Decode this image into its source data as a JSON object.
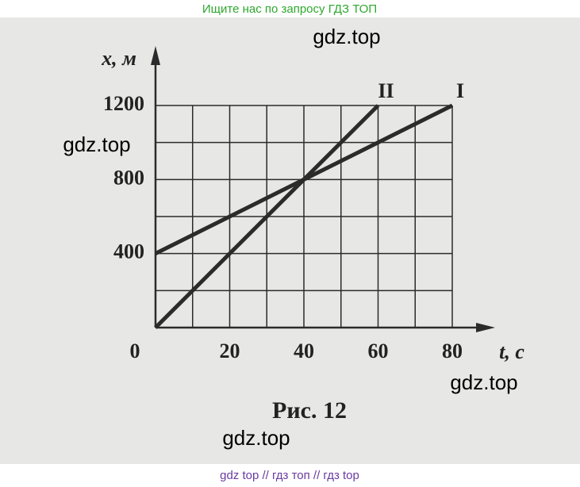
{
  "header": "Ищите нас по запросу ГДЗ ТОП",
  "watermarks": [
    "gdz.top",
    "gdz.top",
    "gdz.top",
    "gdz.top"
  ],
  "footer": "gdz top // гдз топ // гдз top",
  "chart_data": {
    "type": "line",
    "caption": "Рис. 12",
    "x_label": "t, с",
    "y_label": "x, м",
    "xlim": [
      0,
      80
    ],
    "xticks": [
      0,
      20,
      40,
      60,
      80
    ],
    "ylim": [
      0,
      1200
    ],
    "yticks": [
      0,
      400,
      800,
      1200
    ],
    "grid": true,
    "series": [
      {
        "name": "I",
        "color": "#2b2b2b",
        "x": [
          0,
          80
        ],
        "values": [
          400,
          1200
        ]
      },
      {
        "name": "II",
        "color": "#2b2b2b",
        "x": [
          0,
          60
        ],
        "values": [
          0,
          1200
        ]
      }
    ]
  }
}
